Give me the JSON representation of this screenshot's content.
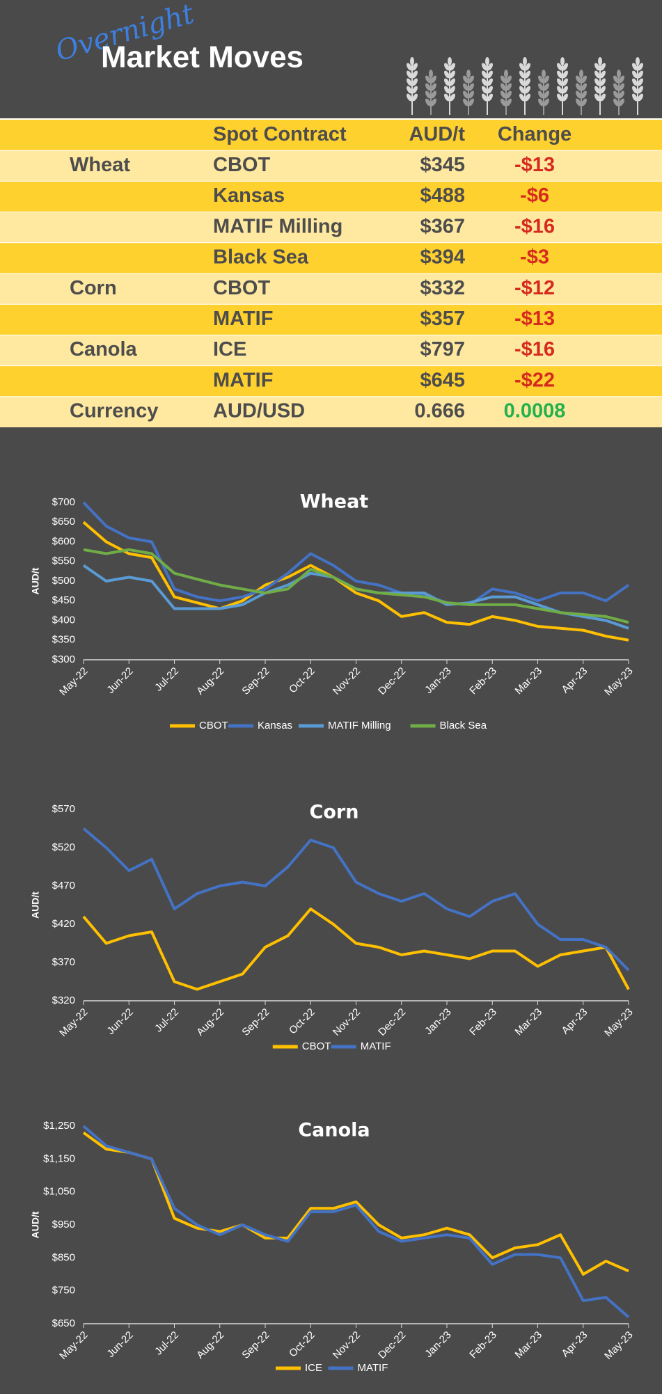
{
  "header": {
    "script_title": "Overnight",
    "title": "Market Moves"
  },
  "table": {
    "columns": [
      "Spot Contract",
      "AUD/t",
      "Change"
    ],
    "rows": [
      {
        "group": "Wheat",
        "contract": "CBOT",
        "price": "$345",
        "change": "-$13"
      },
      {
        "contract": "Kansas",
        "price": "$488",
        "change": "-$6"
      },
      {
        "contract": "MATIF Milling",
        "price": "$367",
        "change": "-$16"
      },
      {
        "contract": "Black Sea",
        "price": "$394",
        "change": "-$3"
      },
      {
        "group": "Corn",
        "contract": "CBOT",
        "price": "$332",
        "change": "-$12"
      },
      {
        "contract": "MATIF",
        "price": "$357",
        "change": "-$13"
      },
      {
        "group": "Canola",
        "contract": "ICE",
        "price": "$797",
        "change": "-$16"
      },
      {
        "contract": "MATIF",
        "price": "$645",
        "change": "-$22"
      },
      {
        "group": "Currency",
        "contract": "AUD/USD",
        "price": "0.666",
        "change": "0.0008"
      }
    ]
  },
  "chart_data": [
    {
      "type": "line",
      "title": "Wheat",
      "y_label": "AUD/t",
      "legend": "bottom",
      "grid": false,
      "categories": [
        "May-22",
        null,
        "Jun-22",
        null,
        "Jul-22",
        null,
        "Aug-22",
        null,
        "Sep-22",
        null,
        "Oct-22",
        null,
        "Nov-22",
        null,
        "Dec-22",
        null,
        "Jan-23",
        null,
        "Feb-23",
        null,
        "Mar-23",
        null,
        "Apr-23",
        null,
        "May-23"
      ],
      "ylim": [
        300,
        700
      ],
      "yticks": [
        {
          "value": 300,
          "label": "$300"
        },
        {
          "value": 350,
          "label": "$350"
        },
        {
          "value": 400,
          "label": "$400"
        },
        {
          "value": 450,
          "label": "$450"
        },
        {
          "value": 500,
          "label": "$500"
        },
        {
          "value": 550,
          "label": "$550"
        },
        {
          "value": 600,
          "label": "$600"
        },
        {
          "value": 650,
          "label": "$650"
        },
        {
          "value": 700,
          "label": "$700"
        }
      ],
      "series": [
        {
          "name": "CBOT",
          "color": "#ffc000",
          "values": [
            650,
            600,
            570,
            560,
            460,
            445,
            430,
            450,
            490,
            510,
            540,
            510,
            470,
            450,
            410,
            420,
            395,
            390,
            410,
            400,
            385,
            380,
            375,
            360,
            350
          ]
        },
        {
          "name": "Kansas",
          "color": "#4472c4",
          "values": [
            700,
            640,
            610,
            600,
            480,
            460,
            450,
            460,
            480,
            520,
            570,
            540,
            500,
            490,
            470,
            465,
            445,
            440,
            480,
            470,
            450,
            470,
            470,
            450,
            490
          ]
        },
        {
          "name": "MATIF Milling",
          "color": "#5b9bd5",
          "values": [
            540,
            500,
            510,
            500,
            430,
            430,
            430,
            440,
            470,
            490,
            520,
            510,
            480,
            470,
            470,
            470,
            440,
            445,
            460,
            460,
            440,
            420,
            410,
            400,
            380
          ]
        },
        {
          "name": "Black Sea",
          "color": "#70ad47",
          "values": [
            580,
            570,
            580,
            570,
            520,
            505,
            490,
            480,
            470,
            480,
            530,
            510,
            480,
            470,
            465,
            460,
            445,
            440,
            440,
            440,
            430,
            420,
            415,
            410,
            395
          ]
        }
      ]
    },
    {
      "type": "line",
      "title": "Corn",
      "y_label": "AUD/t",
      "legend": "bottom",
      "grid": false,
      "categories": [
        "May-22",
        null,
        "Jun-22",
        null,
        "Jul-22",
        null,
        "Aug-22",
        null,
        "Sep-22",
        null,
        "Oct-22",
        null,
        "Nov-22",
        null,
        "Dec-22",
        null,
        "Jan-23",
        null,
        "Feb-23",
        null,
        "Mar-23",
        null,
        "Apr-23",
        null,
        "May-23"
      ],
      "ylim": [
        320,
        570
      ],
      "yticks": [
        {
          "value": 320,
          "label": "$320"
        },
        {
          "value": 370,
          "label": "$370"
        },
        {
          "value": 420,
          "label": "$420"
        },
        {
          "value": 470,
          "label": "$470"
        },
        {
          "value": 520,
          "label": "$520"
        },
        {
          "value": 570,
          "label": "$570"
        }
      ],
      "series": [
        {
          "name": "CBOT",
          "color": "#ffc000",
          "values": [
            430,
            395,
            405,
            410,
            345,
            335,
            345,
            355,
            390,
            405,
            440,
            420,
            395,
            390,
            380,
            385,
            380,
            375,
            385,
            385,
            365,
            380,
            385,
            390,
            335
          ]
        },
        {
          "name": "MATIF",
          "color": "#4472c4",
          "values": [
            545,
            520,
            490,
            505,
            440,
            460,
            470,
            475,
            470,
            495,
            530,
            520,
            475,
            460,
            450,
            460,
            440,
            430,
            450,
            460,
            420,
            400,
            400,
            390,
            360
          ]
        }
      ]
    },
    {
      "type": "line",
      "title": "Canola",
      "y_label": "AUD/t",
      "legend": "bottom",
      "grid": false,
      "categories": [
        "May-22",
        null,
        "Jun-22",
        null,
        "Jul-22",
        null,
        "Aug-22",
        null,
        "Sep-22",
        null,
        "Oct-22",
        null,
        "Nov-22",
        null,
        "Dec-22",
        null,
        "Jan-23",
        null,
        "Feb-23",
        null,
        "Mar-23",
        null,
        "Apr-23",
        null,
        "May-23"
      ],
      "ylim": [
        650,
        1250
      ],
      "yticks": [
        {
          "value": 650,
          "label": "$650"
        },
        {
          "value": 750,
          "label": "$750"
        },
        {
          "value": 850,
          "label": "$850"
        },
        {
          "value": 950,
          "label": "$950"
        },
        {
          "value": 1050,
          "label": "$1,050"
        },
        {
          "value": 1150,
          "label": "$1,150"
        },
        {
          "value": 1250,
          "label": "$1,250"
        }
      ],
      "series": [
        {
          "name": "ICE",
          "color": "#ffc000",
          "values": [
            1230,
            1180,
            1170,
            1150,
            970,
            940,
            930,
            950,
            910,
            910,
            1000,
            1000,
            1020,
            950,
            910,
            920,
            940,
            920,
            850,
            880,
            890,
            920,
            800,
            840,
            810
          ]
        },
        {
          "name": "MATIF",
          "color": "#4472c4",
          "values": [
            1250,
            1190,
            1170,
            1150,
            1000,
            950,
            920,
            950,
            920,
            900,
            990,
            990,
            1010,
            930,
            900,
            910,
            920,
            910,
            830,
            860,
            860,
            850,
            720,
            730,
            670
          ]
        }
      ]
    }
  ]
}
